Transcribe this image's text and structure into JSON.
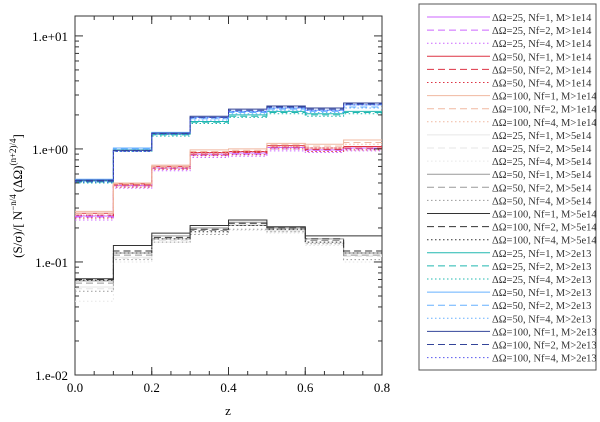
{
  "chart_data": {
    "type": "line",
    "step": true,
    "xlabel": "z",
    "ylabel": "(S/σ)/[ N^{-n/4} (ΔΩ)^{(n+2)/4} ]",
    "ylabel_parts": {
      "a": "(S/σ)/[ N",
      "exp1": "−n/4",
      "b": "(ΔΩ)",
      "exp2": "(n+2)/4",
      "c": "]"
    },
    "xlim": [
      0.0,
      0.8
    ],
    "ylim": [
      0.01,
      15
    ],
    "yscale": "log",
    "x_ticks": [
      "0.0",
      "0.2",
      "0.4",
      "0.6",
      "0.8"
    ],
    "y_ticks": [
      "1.e-02",
      "1.e-01",
      "1.e+00",
      "1.e+01"
    ],
    "bin_edges": [
      0.0,
      0.1,
      0.2,
      0.3,
      0.4,
      0.5,
      0.6,
      0.7,
      0.8
    ],
    "legend_position": "outside-right",
    "series": [
      {
        "name": "ΔΩ=25, Nf=1, M>1e14",
        "color": "#cc66ff",
        "dash": "solid",
        "values": [
          0.255,
          0.475,
          0.68,
          0.9,
          0.92,
          1.03,
          0.98,
          1.02
        ]
      },
      {
        "name": "ΔΩ=25, Nf=2, M>1e14",
        "color": "#cc66ff",
        "dash": "dash",
        "values": [
          0.25,
          0.47,
          0.67,
          0.88,
          0.9,
          1.0,
          0.97,
          1.0
        ]
      },
      {
        "name": "ΔΩ=25, Nf=4, M>1e14",
        "color": "#cc66ff",
        "dash": "dot",
        "values": [
          0.235,
          0.45,
          0.64,
          0.84,
          0.86,
          0.96,
          0.93,
          0.96
        ]
      },
      {
        "name": "ΔΩ=50, Nf=1, M>1e14",
        "color": "#dd3344",
        "dash": "solid",
        "values": [
          0.27,
          0.49,
          0.7,
          0.93,
          0.95,
          1.07,
          1.02,
          1.05
        ]
      },
      {
        "name": "ΔΩ=50, Nf=2, M>1e14",
        "color": "#dd3344",
        "dash": "dash",
        "values": [
          0.26,
          0.48,
          0.68,
          0.9,
          0.93,
          1.04,
          0.99,
          1.02
        ]
      },
      {
        "name": "ΔΩ=50, Nf=4, M>1e14",
        "color": "#dd3344",
        "dash": "dot",
        "values": [
          0.245,
          0.46,
          0.66,
          0.87,
          0.89,
          1.0,
          0.95,
          0.98
        ]
      },
      {
        "name": "ΔΩ=100, Nf=1, M>1e14",
        "color": "#f0b8a0",
        "dash": "solid",
        "values": [
          0.28,
          0.5,
          0.72,
          0.98,
          1.0,
          1.12,
          1.1,
          1.2
        ]
      },
      {
        "name": "ΔΩ=100, Nf=2, M>1e14",
        "color": "#f0b8a0",
        "dash": "dash",
        "values": [
          0.27,
          0.49,
          0.7,
          0.95,
          0.97,
          1.09,
          1.06,
          1.14
        ]
      },
      {
        "name": "ΔΩ=100, Nf=4, M>1e14",
        "color": "#f0b8a0",
        "dash": "dot",
        "values": [
          0.26,
          0.47,
          0.68,
          0.92,
          0.94,
          1.05,
          1.02,
          1.1
        ]
      },
      {
        "name": "ΔΩ=25, Nf=1, M>5e14",
        "color": "#e6e6e6",
        "dash": "solid",
        "values": [
          0.06,
          0.11,
          0.16,
          0.2,
          0.215,
          0.19,
          0.15,
          0.115
        ]
      },
      {
        "name": "ΔΩ=25, Nf=2, M>5e14",
        "color": "#e6e6e6",
        "dash": "dash",
        "values": [
          0.058,
          0.108,
          0.155,
          0.195,
          0.21,
          0.185,
          0.145,
          0.112
        ]
      },
      {
        "name": "ΔΩ=25, Nf=4, M>5e14",
        "color": "#e6e6e6",
        "dash": "dot",
        "values": [
          0.045,
          0.1,
          0.15,
          0.18,
          0.19,
          0.18,
          0.14,
          0.1
        ]
      },
      {
        "name": "ΔΩ=50, Nf=1, M>5e14",
        "color": "#999999",
        "dash": "solid",
        "values": [
          0.068,
          0.12,
          0.17,
          0.2,
          0.225,
          0.2,
          0.16,
          0.12
        ]
      },
      {
        "name": "ΔΩ=50, Nf=2, M>5e14",
        "color": "#999999",
        "dash": "dash",
        "values": [
          0.065,
          0.115,
          0.16,
          0.19,
          0.21,
          0.195,
          0.155,
          0.115
        ]
      },
      {
        "name": "ΔΩ=50, Nf=4, M>5e14",
        "color": "#999999",
        "dash": "dot",
        "values": [
          0.055,
          0.105,
          0.15,
          0.175,
          0.195,
          0.185,
          0.145,
          0.105
        ]
      },
      {
        "name": "ΔΩ=100, Nf=1, M>5e14",
        "color": "#333333",
        "dash": "solid",
        "values": [
          0.071,
          0.14,
          0.18,
          0.21,
          0.235,
          0.205,
          0.17,
          0.17
        ]
      },
      {
        "name": "ΔΩ=100, Nf=2, M>5e14",
        "color": "#333333",
        "dash": "dash",
        "values": [
          0.07,
          0.125,
          0.165,
          0.195,
          0.22,
          0.2,
          0.16,
          0.125
        ]
      },
      {
        "name": "ΔΩ=100, Nf=4, M>5e14",
        "color": "#333333",
        "dash": "dot",
        "values": [
          0.069,
          0.12,
          0.16,
          0.185,
          0.21,
          0.195,
          0.15,
          0.12
        ]
      },
      {
        "name": "ΔΩ=25, Nf=1, M>2e13",
        "color": "#20b8b0",
        "dash": "solid",
        "values": [
          0.52,
          0.98,
          1.35,
          1.75,
          2.0,
          2.15,
          2.05,
          2.15
        ]
      },
      {
        "name": "ΔΩ=25, Nf=2, M>2e13",
        "color": "#20b8b0",
        "dash": "dash",
        "values": [
          0.51,
          0.97,
          1.33,
          1.72,
          1.95,
          2.1,
          2.0,
          2.1
        ]
      },
      {
        "name": "ΔΩ=25, Nf=4, M>2e13",
        "color": "#20b8b0",
        "dash": "dot",
        "values": [
          0.5,
          0.95,
          1.3,
          1.68,
          1.9,
          2.05,
          1.95,
          2.05
        ]
      },
      {
        "name": "ΔΩ=50, Nf=1, M>2e13",
        "color": "#66b0ff",
        "dash": "solid",
        "values": [
          0.54,
          1.02,
          1.4,
          1.9,
          2.15,
          2.3,
          2.2,
          2.45
        ]
      },
      {
        "name": "ΔΩ=50, Nf=2, M>2e13",
        "color": "#66b0ff",
        "dash": "dash",
        "values": [
          0.53,
          1.0,
          1.38,
          1.85,
          2.1,
          2.25,
          2.15,
          2.35
        ]
      },
      {
        "name": "ΔΩ=50, Nf=4, M>2e13",
        "color": "#66b0ff",
        "dash": "dot",
        "values": [
          0.52,
          0.98,
          1.36,
          1.8,
          2.05,
          2.2,
          2.1,
          2.3
        ]
      },
      {
        "name": "ΔΩ=100, Nf=1, M>2e13",
        "color": "#334499",
        "dash": "solid",
        "values": [
          0.53,
          0.97,
          1.38,
          1.95,
          2.25,
          2.4,
          2.3,
          2.55
        ]
      },
      {
        "name": "ΔΩ=100, Nf=2, M>2e13",
        "color": "#334499",
        "dash": "dash",
        "values": [
          0.52,
          0.96,
          1.37,
          1.9,
          2.2,
          2.35,
          2.25,
          2.5
        ]
      },
      {
        "name": "ΔΩ=100, Nf=4, M>2e13",
        "color": "#5555ee",
        "dash": "dot",
        "values": [
          0.51,
          0.95,
          1.35,
          1.88,
          2.15,
          2.3,
          2.2,
          2.45
        ]
      }
    ]
  }
}
